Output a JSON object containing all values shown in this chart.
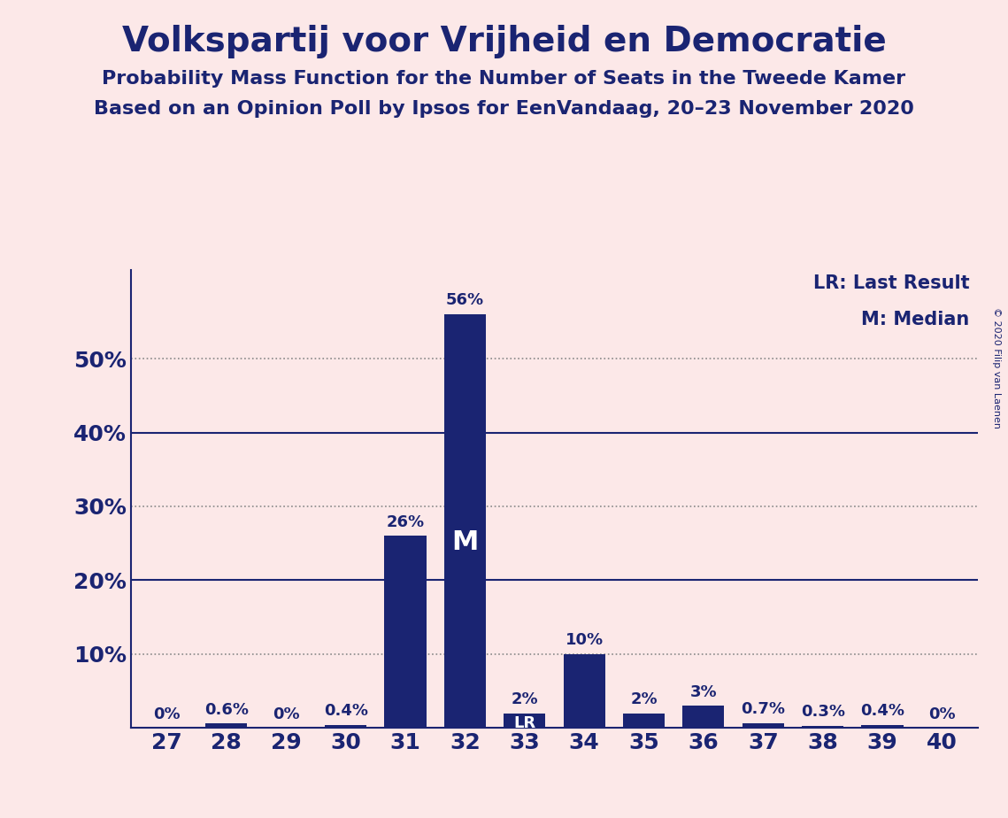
{
  "title": "Volkspartij voor Vrijheid en Democratie",
  "subtitle1": "Probability Mass Function for the Number of Seats in the Tweede Kamer",
  "subtitle2": "Based on an Opinion Poll by Ipsos for EenVandaag, 20–23 November 2020",
  "copyright": "© 2020 Filip van Laenen",
  "categories": [
    27,
    28,
    29,
    30,
    31,
    32,
    33,
    34,
    35,
    36,
    37,
    38,
    39,
    40
  ],
  "values": [
    0.0,
    0.6,
    0.0,
    0.4,
    26.0,
    56.0,
    2.0,
    10.0,
    2.0,
    3.0,
    0.7,
    0.3,
    0.4,
    0.0
  ],
  "labels": [
    "0%",
    "0.6%",
    "0%",
    "0.4%",
    "26%",
    "56%",
    "2%",
    "10%",
    "2%",
    "3%",
    "0.7%",
    "0.3%",
    "0.4%",
    "0%"
  ],
  "bar_color": "#1a2472",
  "background_color": "#fce8e8",
  "median_seat": 32,
  "last_result_seat": 33,
  "legend_lr": "LR: Last Result",
  "legend_m": "M: Median",
  "yticks": [
    0,
    10,
    20,
    30,
    40,
    50
  ],
  "ylim": [
    0,
    62
  ],
  "title_fontsize": 28,
  "subtitle_fontsize": 16,
  "label_fontsize": 13,
  "tick_fontsize": 18,
  "solid_lines": [
    20,
    40
  ],
  "dotted_lines": [
    10,
    30,
    50
  ]
}
